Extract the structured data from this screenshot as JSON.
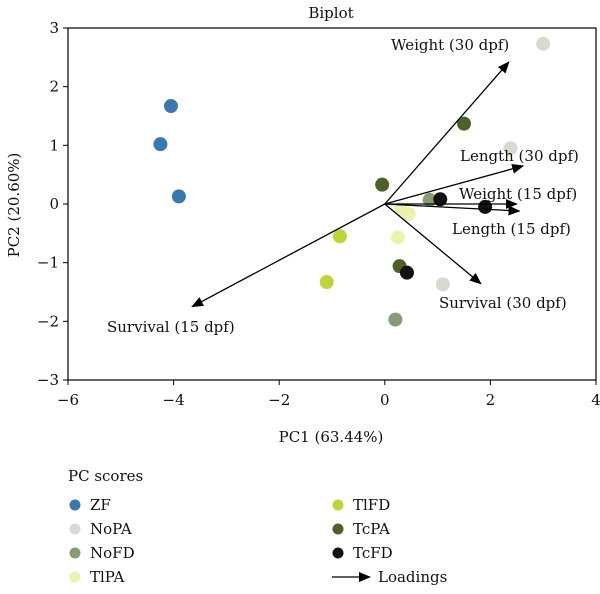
{
  "chart_data": {
    "type": "scatter",
    "title": "Biplot",
    "xlabel": "PC1 (63.44%)",
    "ylabel": "PC2 (20.60%)",
    "xlim": [
      -6,
      4
    ],
    "ylim": [
      -3,
      3
    ],
    "xticks": [
      -6,
      -4,
      -2,
      0,
      2,
      4
    ],
    "yticks": [
      -3,
      -2,
      -1,
      0,
      1,
      2,
      3
    ],
    "xtick_labels": [
      "−6",
      "−4",
      "−2",
      "0",
      "2",
      "4"
    ],
    "ytick_labels": [
      "−3",
      "−2",
      "−1",
      "0",
      "1",
      "2",
      "3"
    ],
    "grid": false,
    "legend": {
      "title": "PC scores",
      "placement": "bottom",
      "loadings_label": "Loadings"
    },
    "series": [
      {
        "name": "ZF",
        "color": "#3a78ad",
        "points": [
          [
            -4.05,
            1.67
          ],
          [
            -4.25,
            1.02
          ],
          [
            -3.9,
            0.13
          ]
        ]
      },
      {
        "name": "NoPA",
        "color": "#d9d9d2",
        "points": [
          [
            3.0,
            2.73
          ],
          [
            2.38,
            0.95
          ],
          [
            1.1,
            -1.37
          ]
        ]
      },
      {
        "name": "NoFD",
        "color": "#8a9a72",
        "points": [
          [
            0.85,
            0.07
          ],
          [
            0.2,
            -1.97
          ]
        ]
      },
      {
        "name": "TlPA",
        "color": "#eef0b0",
        "points": [
          [
            0.25,
            -0.57
          ],
          [
            0.45,
            -0.17
          ],
          [
            0.3,
            -0.08
          ]
        ]
      },
      {
        "name": "TlFD",
        "color": "#bfd43a",
        "points": [
          [
            -0.85,
            -0.55
          ],
          [
            -1.1,
            -1.33
          ]
        ]
      },
      {
        "name": "TcPA",
        "color": "#4f5f2a",
        "points": [
          [
            1.5,
            1.37
          ],
          [
            -0.05,
            0.33
          ],
          [
            0.28,
            -1.06
          ]
        ]
      },
      {
        "name": "TcFD",
        "color": "#111111",
        "points": [
          [
            1.05,
            0.08
          ],
          [
            1.9,
            -0.05
          ],
          [
            0.42,
            -1.17
          ]
        ]
      }
    ],
    "loadings": [
      {
        "name": "Weight (30 dpf)",
        "x": 2.35,
        "y": 2.42
      },
      {
        "name": "Length (30 dpf)",
        "x": 2.62,
        "y": 0.65
      },
      {
        "name": "Weight (15 dpf)",
        "x": 2.5,
        "y": 0.0
      },
      {
        "name": "Length (15 dpf)",
        "x": 2.55,
        "y": -0.12
      },
      {
        "name": "Survival (30 dpf)",
        "x": 1.82,
        "y": -1.36
      },
      {
        "name": "Survival (15 dpf)",
        "x": -3.65,
        "y": -1.75
      }
    ]
  }
}
